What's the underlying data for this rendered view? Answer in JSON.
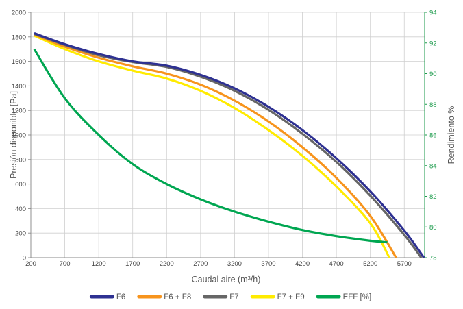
{
  "chart_data": {
    "type": "line",
    "xlabel": "Caudal aire (m³/h)",
    "ylabel": "Presión disponible [Pa]",
    "ylabel_right": "Rendimiento %",
    "xlim": [
      200,
      6000
    ],
    "ylim": [
      0,
      2000
    ],
    "ylim_right": [
      78,
      94
    ],
    "x_ticks": [
      200,
      700,
      1200,
      1700,
      2200,
      2700,
      3200,
      3700,
      4200,
      4700,
      5200,
      5700
    ],
    "y_ticks": [
      0,
      200,
      400,
      600,
      800,
      1000,
      1200,
      1400,
      1600,
      1800,
      2000
    ],
    "y_right_ticks": [
      78,
      80,
      82,
      84,
      86,
      88,
      90,
      92,
      94
    ],
    "grid": true,
    "legend_position": "bottom",
    "series": [
      {
        "name": "F6",
        "color": "#2e3192",
        "axis": "left",
        "points": [
          [
            250,
            1830
          ],
          [
            700,
            1740
          ],
          [
            1200,
            1660
          ],
          [
            1700,
            1600
          ],
          [
            2200,
            1565
          ],
          [
            2700,
            1490
          ],
          [
            3200,
            1380
          ],
          [
            3700,
            1230
          ],
          [
            4200,
            1040
          ],
          [
            4700,
            810
          ],
          [
            5200,
            540
          ],
          [
            5700,
            220
          ],
          [
            5990,
            0
          ]
        ]
      },
      {
        "name": "F6 + F8",
        "color": "#f7941d",
        "axis": "left",
        "points": [
          [
            250,
            1820
          ],
          [
            700,
            1720
          ],
          [
            1200,
            1630
          ],
          [
            1700,
            1560
          ],
          [
            2200,
            1500
          ],
          [
            2700,
            1410
          ],
          [
            3200,
            1280
          ],
          [
            3700,
            1110
          ],
          [
            4200,
            900
          ],
          [
            4700,
            650
          ],
          [
            5200,
            340
          ],
          [
            5580,
            0
          ]
        ]
      },
      {
        "name": "F7",
        "color": "#666666",
        "axis": "left",
        "points": [
          [
            250,
            1825
          ],
          [
            700,
            1735
          ],
          [
            1200,
            1650
          ],
          [
            1700,
            1595
          ],
          [
            2200,
            1555
          ],
          [
            2700,
            1475
          ],
          [
            3200,
            1360
          ],
          [
            3700,
            1205
          ],
          [
            4200,
            1010
          ],
          [
            4700,
            780
          ],
          [
            5200,
            505
          ],
          [
            5700,
            185
          ],
          [
            5950,
            0
          ]
        ]
      },
      {
        "name": "F7 + F9",
        "color": "#ffeb00",
        "axis": "left",
        "points": [
          [
            250,
            1810
          ],
          [
            700,
            1700
          ],
          [
            1200,
            1600
          ],
          [
            1700,
            1525
          ],
          [
            2200,
            1460
          ],
          [
            2700,
            1360
          ],
          [
            3200,
            1220
          ],
          [
            3700,
            1040
          ],
          [
            4200,
            830
          ],
          [
            4700,
            580
          ],
          [
            5200,
            280
          ],
          [
            5480,
            0
          ]
        ]
      },
      {
        "name": "EFF [%]",
        "color": "#00a651",
        "axis": "right",
        "points": [
          [
            250,
            91.6
          ],
          [
            700,
            88.4
          ],
          [
            1200,
            86.0
          ],
          [
            1700,
            84.1
          ],
          [
            2200,
            82.8
          ],
          [
            2700,
            81.8
          ],
          [
            3200,
            81.0
          ],
          [
            3700,
            80.35
          ],
          [
            4200,
            79.8
          ],
          [
            4700,
            79.4
          ],
          [
            5200,
            79.1
          ],
          [
            5450,
            79.0
          ]
        ]
      }
    ]
  }
}
